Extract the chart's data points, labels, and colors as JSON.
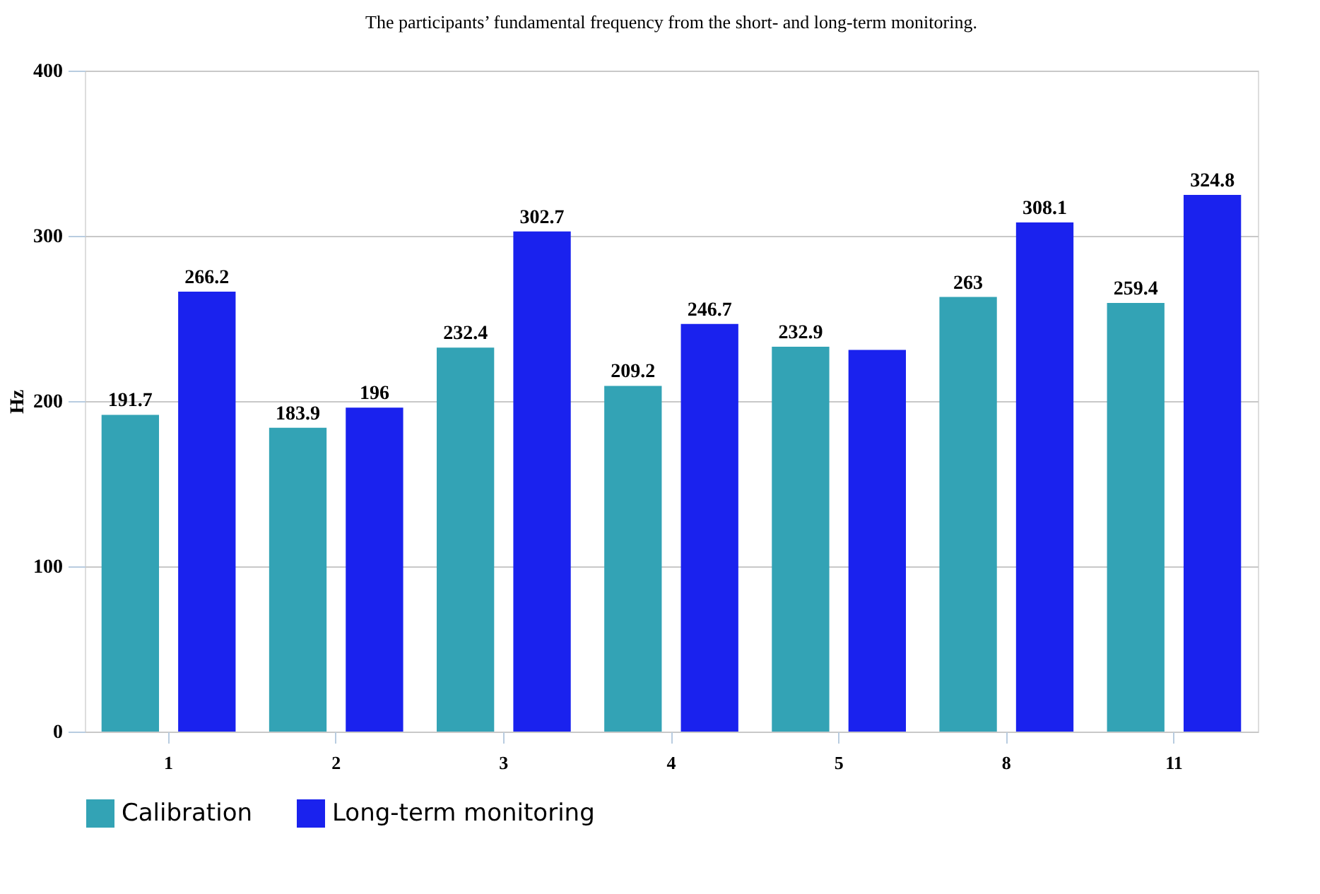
{
  "chart_data": {
    "type": "bar",
    "title": "The participants’ fundamental frequency from the short- and long-term monitoring.",
    "ylabel": "Hz",
    "categories": [
      "1",
      "2",
      "3",
      "4",
      "5",
      "8",
      "11"
    ],
    "series": [
      {
        "name": "Calibration",
        "color": "#33a3b5",
        "values": [
          191.7,
          183.9,
          232.4,
          209.2,
          232.9,
          263,
          259.4
        ],
        "value_labels": [
          "191.7",
          "183.9",
          "232.4",
          "209.2",
          "232.9",
          "263",
          "259.4"
        ]
      },
      {
        "name": "Long-term monitoring",
        "color": "#1a22ee",
        "values": [
          266.2,
          196,
          302.7,
          246.7,
          231,
          308.1,
          324.8
        ],
        "value_labels": [
          "266.2",
          "196",
          "302.7",
          "246.7",
          null,
          "308.1",
          "324.8"
        ]
      }
    ],
    "ylim": [
      0,
      400
    ],
    "yticks": [
      0,
      100,
      200,
      300,
      400
    ],
    "grid": "y",
    "legend": "bottom"
  }
}
